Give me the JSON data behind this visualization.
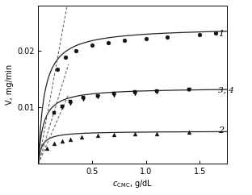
{
  "ylabel": "V, mg/min",
  "xlim": [
    0,
    1.75
  ],
  "ylim": [
    0,
    0.028
  ],
  "yticks": [
    0.01,
    0.02
  ],
  "xticks": [
    0.5,
    1.0,
    1.5
  ],
  "curve1_Vmax": 0.0242,
  "curve1_Km": 0.055,
  "curve1_color": "#222222",
  "curve1_label": "1",
  "curve2_Vmax": 0.0058,
  "curve2_Km": 0.03,
  "curve2_color": "#222222",
  "curve2_label": "2",
  "curve3_Vmax": 0.0135,
  "curve3_Km": 0.045,
  "curve3_color": "#222222",
  "curve3_label": "3, 4",
  "tangent1_slope": 0.105,
  "tangent2_slope": 0.044,
  "tangent3_slope": 0.063,
  "dots1_x": [
    0.18,
    0.25,
    0.35,
    0.5,
    0.65,
    0.8,
    1.0,
    1.2,
    1.5,
    1.65
  ],
  "dots1_y": [
    0.0168,
    0.0188,
    0.02,
    0.021,
    0.0215,
    0.0218,
    0.0222,
    0.0225,
    0.0228,
    0.0232
  ],
  "dots2_x": [
    0.08,
    0.15,
    0.22,
    0.3,
    0.4,
    0.55,
    0.7,
    0.9,
    1.1,
    1.4
  ],
  "dots2_y": [
    0.0028,
    0.0036,
    0.004,
    0.0044,
    0.0047,
    0.005,
    0.0052,
    0.0053,
    0.0054,
    0.0056
  ],
  "dots3_x": [
    0.15,
    0.22,
    0.3,
    0.42,
    0.55,
    0.7,
    0.9,
    1.1,
    1.4
  ],
  "dots3_y": [
    0.009,
    0.0102,
    0.011,
    0.0117,
    0.0121,
    0.0124,
    0.0127,
    0.0129,
    0.0132
  ],
  "dots4_x": [
    0.22,
    0.3,
    0.42,
    0.55,
    0.7,
    0.9,
    1.1,
    1.4
  ],
  "dots4_y": [
    0.01,
    0.0108,
    0.0115,
    0.0119,
    0.0122,
    0.0125,
    0.0128,
    0.0131
  ],
  "background_color": "#ffffff"
}
